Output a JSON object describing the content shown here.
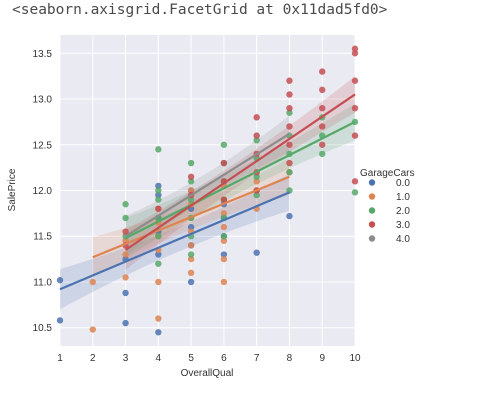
{
  "output_text": "<seaborn.axisgrid.FacetGrid at 0x11dad5fd0>",
  "chart_data": {
    "type": "scatter",
    "title": "",
    "xlabel": "OverallQual",
    "ylabel": "SalePrice",
    "xlim": [
      1,
      10
    ],
    "ylim": [
      10.3,
      13.7
    ],
    "xticks": [
      1,
      2,
      3,
      4,
      5,
      6,
      7,
      8,
      9,
      10
    ],
    "yticks": [
      10.5,
      11.0,
      11.5,
      12.0,
      12.5,
      13.0,
      13.5
    ],
    "ytick_labels": [
      "10.5",
      "11.0",
      "11.5",
      "12.0",
      "12.5",
      "13.0",
      "13.5"
    ],
    "grid": true,
    "legend": {
      "title": "GarageCars",
      "placement": "right"
    },
    "series": [
      {
        "name": "0.0",
        "color": "#4c72b0",
        "points": [
          [
            1,
            10.58
          ],
          [
            1,
            11.02
          ],
          [
            3,
            10.55
          ],
          [
            3,
            10.88
          ],
          [
            3,
            11.25
          ],
          [
            4,
            10.45
          ],
          [
            4,
            11.3
          ],
          [
            4,
            11.55
          ],
          [
            4,
            11.7
          ],
          [
            4,
            11.95
          ],
          [
            4,
            12.05
          ],
          [
            5,
            11.0
          ],
          [
            5,
            11.4
          ],
          [
            5,
            11.6
          ],
          [
            5,
            11.8
          ],
          [
            5,
            12.0
          ],
          [
            6,
            11.3
          ],
          [
            6,
            11.5
          ],
          [
            6,
            11.7
          ],
          [
            6,
            11.85
          ],
          [
            7,
            11.32
          ],
          [
            8,
            11.72
          ]
        ],
        "fit": {
          "x": [
            1,
            8
          ],
          "y": [
            10.92,
            11.98
          ]
        }
      },
      {
        "name": "1.0",
        "color": "#dd8452",
        "points": [
          [
            2,
            11.0
          ],
          [
            2,
            10.48
          ],
          [
            3,
            11.05
          ],
          [
            3,
            11.3
          ],
          [
            3,
            11.45
          ],
          [
            4,
            10.6
          ],
          [
            4,
            11.0
          ],
          [
            4,
            11.35
          ],
          [
            4,
            11.5
          ],
          [
            4,
            11.65
          ],
          [
            4,
            11.8
          ],
          [
            5,
            11.1
          ],
          [
            5,
            11.25
          ],
          [
            5,
            11.4
          ],
          [
            5,
            11.55
          ],
          [
            5,
            11.7
          ],
          [
            5,
            11.85
          ],
          [
            5,
            12.0
          ],
          [
            6,
            11.0
          ],
          [
            6,
            11.25
          ],
          [
            6,
            11.45
          ],
          [
            6,
            11.6
          ],
          [
            6,
            11.75
          ],
          [
            6,
            11.9
          ],
          [
            6,
            12.05
          ],
          [
            7,
            11.8
          ],
          [
            7,
            12.0
          ],
          [
            7,
            12.1
          ],
          [
            8,
            12.2
          ]
        ],
        "fit": {
          "x": [
            2,
            8
          ],
          "y": [
            11.27,
            12.15
          ]
        }
      },
      {
        "name": "2.0",
        "color": "#55a868",
        "points": [
          [
            3,
            11.5
          ],
          [
            3,
            11.7
          ],
          [
            3,
            11.85
          ],
          [
            4,
            11.2
          ],
          [
            4,
            11.5
          ],
          [
            4,
            11.7
          ],
          [
            4,
            11.9
          ],
          [
            4,
            12.0
          ],
          [
            4,
            12.45
          ],
          [
            5,
            11.3
          ],
          [
            5,
            11.5
          ],
          [
            5,
            11.7
          ],
          [
            5,
            11.9
          ],
          [
            5,
            12.1
          ],
          [
            5,
            12.3
          ],
          [
            6,
            11.5
          ],
          [
            6,
            11.7
          ],
          [
            6,
            11.9
          ],
          [
            6,
            12.1
          ],
          [
            6,
            12.3
          ],
          [
            6,
            12.5
          ],
          [
            7,
            11.95
          ],
          [
            7,
            12.15
          ],
          [
            7,
            12.35
          ],
          [
            7,
            12.55
          ],
          [
            8,
            12.0
          ],
          [
            8,
            12.2
          ],
          [
            8,
            12.4
          ],
          [
            8,
            12.6
          ],
          [
            8,
            12.85
          ],
          [
            9,
            12.4
          ],
          [
            9,
            12.6
          ],
          [
            9,
            12.8
          ],
          [
            10,
            11.98
          ],
          [
            10,
            12.75
          ]
        ],
        "fit": {
          "x": [
            3,
            10
          ],
          "y": [
            11.48,
            12.75
          ]
        }
      },
      {
        "name": "3.0",
        "color": "#c44e52",
        "points": [
          [
            3,
            11.4
          ],
          [
            3,
            11.55
          ],
          [
            4,
            11.8
          ],
          [
            5,
            11.95
          ],
          [
            5,
            12.15
          ],
          [
            6,
            11.9
          ],
          [
            6,
            12.1
          ],
          [
            6,
            12.3
          ],
          [
            7,
            12.0
          ],
          [
            7,
            12.2
          ],
          [
            7,
            12.4
          ],
          [
            7,
            12.6
          ],
          [
            7,
            12.8
          ],
          [
            8,
            12.3
          ],
          [
            8,
            12.5
          ],
          [
            8,
            12.7
          ],
          [
            8,
            12.9
          ],
          [
            8,
            13.05
          ],
          [
            8,
            13.2
          ],
          [
            9,
            12.5
          ],
          [
            9,
            12.7
          ],
          [
            9,
            12.9
          ],
          [
            9,
            13.1
          ],
          [
            9,
            13.3
          ],
          [
            10,
            12.1
          ],
          [
            10,
            12.6
          ],
          [
            10,
            12.9
          ],
          [
            10,
            13.2
          ],
          [
            10,
            13.5
          ],
          [
            10,
            13.55
          ]
        ],
        "fit": {
          "x": [
            3,
            10
          ],
          "y": [
            11.35,
            13.05
          ]
        }
      },
      {
        "name": "4.0",
        "color": "#8c8c8c",
        "points": [],
        "fit": {
          "x": [
            3,
            8
          ],
          "y": [
            11.5,
            12.62
          ]
        }
      }
    ]
  }
}
